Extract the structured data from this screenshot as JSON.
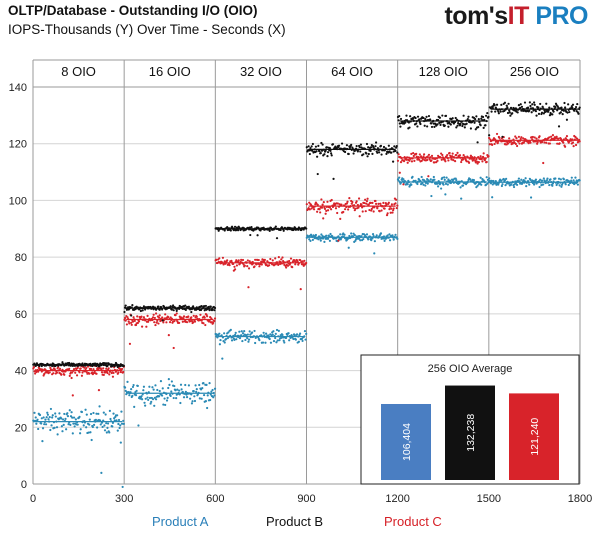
{
  "title": "OLTP/Database - Outstanding I/O (OIO)",
  "subtitle": "IOPS-Thousands (Y) Over Time - Seconds (X)",
  "logo": {
    "part1": "tom's",
    "part2": "IT",
    "part3": " PRO"
  },
  "colors": {
    "product_a": "#2a8ab5",
    "product_b": "#111111",
    "product_c": "#d8232a"
  },
  "chart_data": [
    {
      "type": "scatter",
      "title": "OLTP/Database - Outstanding I/O (OIO)",
      "subtitle": "IOPS-Thousands (Y) Over Time - Seconds (X)",
      "xlim": [
        0,
        1800
      ],
      "ylim": [
        0,
        140
      ],
      "x_ticks": [
        0,
        300,
        600,
        900,
        1200,
        1500,
        1800
      ],
      "y_ticks": [
        0,
        20,
        40,
        60,
        80,
        100,
        120,
        140
      ],
      "grid": true,
      "segments": [
        {
          "label": "8 OIO",
          "x_start": 0,
          "x_end": 300
        },
        {
          "label": "16 OIO",
          "x_start": 300,
          "x_end": 600
        },
        {
          "label": "32  OIO",
          "x_start": 600,
          "x_end": 900
        },
        {
          "label": "64 OIO",
          "x_start": 900,
          "x_end": 1200
        },
        {
          "label": "128 OIO",
          "x_start": 1200,
          "x_end": 1500
        },
        {
          "label": "256 OIO",
          "x_start": 1500,
          "x_end": 1800
        }
      ],
      "series": [
        {
          "name": "Product  A",
          "color": "#2a8ab5",
          "segment_means": [
            22,
            32,
            52,
            87,
            106.5,
            106.4
          ],
          "segment_spread": [
            6,
            6,
            3,
            2,
            2.5,
            2
          ]
        },
        {
          "name": "Product  B",
          "color": "#111111",
          "segment_means": [
            42,
            62,
            90,
            118,
            128,
            132.2
          ],
          "segment_spread": [
            1,
            1.2,
            1,
            3,
            3.5,
            3
          ]
        },
        {
          "name": "Product  C",
          "color": "#d8232a",
          "segment_means": [
            40,
            58,
            78,
            98,
            115,
            121.2
          ],
          "segment_spread": [
            2.5,
            3,
            2.5,
            3.5,
            2.5,
            2.5
          ]
        }
      ]
    },
    {
      "type": "bar",
      "title": "256 OIO Average",
      "categories": [
        "Product  A",
        "Product  B",
        "Product  C"
      ],
      "values": [
        106404,
        132238,
        121240
      ],
      "value_labels": [
        "106,404",
        "132,238",
        "121,240"
      ],
      "colors": [
        "#4a7ec2",
        "#111111",
        "#d8232a"
      ],
      "ylim": [
        0,
        140000
      ]
    }
  ]
}
